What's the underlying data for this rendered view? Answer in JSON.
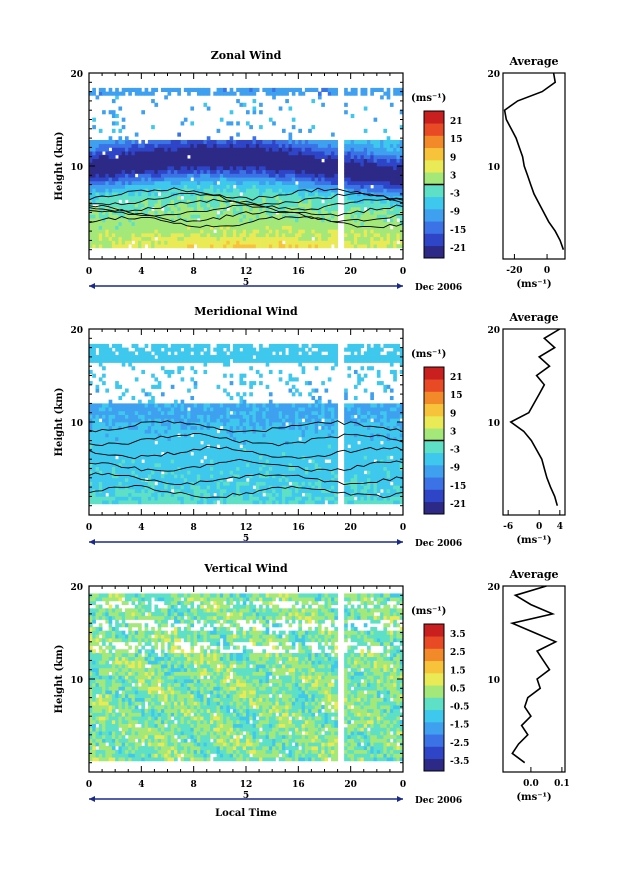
{
  "chart_data": [
    {
      "type": "heatmap",
      "title": "Zonal Wind",
      "ylabel": "Height (km)",
      "x_ticks": [
        "0",
        "4",
        "8",
        "12",
        "16",
        "20",
        "0"
      ],
      "day_marker": "5",
      "date_label": "Dec 2006",
      "y_range": [
        0,
        20
      ],
      "y_ticks": [
        "20",
        "10"
      ],
      "colorbar": {
        "unit": "(ms⁻¹)",
        "min": -24,
        "max": 24,
        "ticks": [
          "21",
          "15",
          "9",
          "3",
          "-3",
          "-9",
          "-15",
          "-21"
        ],
        "zero_line": true
      },
      "data_gap_hours": [
        18.9,
        19.3
      ],
      "profile": {
        "title": "Average",
        "xlabel": "(ms⁻¹)",
        "x_ticks": [
          "-20",
          "0"
        ],
        "x_range": [
          -27,
          11
        ],
        "y_ticks": [
          "20",
          "10"
        ],
        "heights": [
          1,
          2,
          3,
          4,
          5,
          6,
          7,
          8,
          9,
          10,
          11,
          12,
          13,
          14,
          15,
          16,
          17,
          18,
          19,
          20
        ],
        "values": [
          10,
          8,
          5,
          1,
          -2,
          -5,
          -8,
          -10,
          -12,
          -14,
          -15,
          -17,
          -19,
          -22,
          -25,
          -26,
          -18,
          -3,
          5,
          4
        ]
      }
    },
    {
      "type": "heatmap",
      "title": "Meridional Wind",
      "ylabel": "Height (km)",
      "x_ticks": [
        "0",
        "4",
        "8",
        "12",
        "16",
        "20",
        "0"
      ],
      "day_marker": "5",
      "date_label": "Dec 2006",
      "y_range": [
        0,
        20
      ],
      "y_ticks": [
        "20",
        "10"
      ],
      "colorbar": {
        "unit": "(ms⁻¹)",
        "min": -24,
        "max": 24,
        "ticks": [
          "21",
          "15",
          "9",
          "3",
          "-3",
          "-9",
          "-15",
          "-21"
        ],
        "zero_line": true
      },
      "data_gap_hours": [
        18.9,
        19.3
      ],
      "profile": {
        "title": "Average",
        "xlabel": "(ms⁻¹)",
        "x_ticks": [
          "-6",
          "0",
          "4"
        ],
        "x_range": [
          -7,
          5
        ],
        "y_ticks": [
          "20",
          "10"
        ],
        "heights": [
          1,
          2,
          3,
          4,
          5,
          6,
          7,
          8,
          9,
          10,
          11,
          12,
          13,
          14,
          15,
          16,
          17,
          18,
          19,
          20
        ],
        "values": [
          3.5,
          3,
          2.2,
          1.5,
          1,
          0.5,
          -0.5,
          -1.5,
          -3,
          -5.5,
          -2,
          -1,
          0,
          1,
          -0.5,
          2,
          0,
          3,
          1,
          4
        ]
      }
    },
    {
      "type": "heatmap",
      "title": "Vertical Wind",
      "ylabel": "Height (km)",
      "xlabel": "Local Time",
      "x_ticks": [
        "0",
        "4",
        "8",
        "12",
        "16",
        "20",
        "0"
      ],
      "day_marker": "5",
      "date_label": "Dec 2006",
      "y_range": [
        0,
        20
      ],
      "y_ticks": [
        "20",
        "10"
      ],
      "colorbar": {
        "unit": "(ms⁻¹)",
        "min": -4,
        "max": 4,
        "ticks": [
          "3.5",
          "2.5",
          "1.5",
          "0.5",
          "-0.5",
          "-1.5",
          "-2.5",
          "-3.5"
        ],
        "zero_line": false
      },
      "data_gap_hours": [
        18.9,
        19.3
      ],
      "profile": {
        "title": "Average",
        "xlabel": "(ms⁻¹)",
        "x_ticks": [
          "0.0",
          "0.1"
        ],
        "x_range": [
          -0.09,
          0.11
        ],
        "y_ticks": [
          "20",
          "10"
        ],
        "heights": [
          1,
          2,
          3,
          4,
          5,
          6,
          7,
          8,
          9,
          10,
          11,
          12,
          13,
          14,
          15,
          16,
          17,
          18,
          19,
          20
        ],
        "values": [
          -0.02,
          -0.06,
          -0.04,
          -0.01,
          -0.03,
          0.0,
          -0.02,
          -0.01,
          0.03,
          0.02,
          0.06,
          0.04,
          0.02,
          0.08,
          0.01,
          -0.06,
          0.07,
          0.0,
          -0.05,
          0.05
        ]
      }
    }
  ]
}
